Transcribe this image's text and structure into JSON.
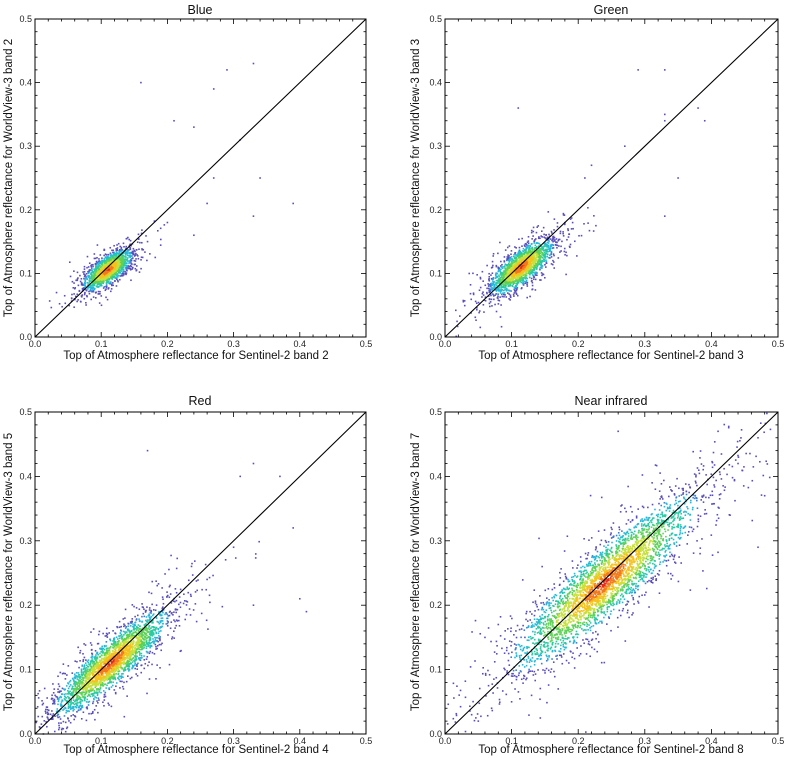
{
  "chart_data": [
    {
      "type": "scatter",
      "title": "Blue",
      "xlabel": "Top of Atmosphere reflectance for Sentinel-2  band 2",
      "ylabel": "Top of Atmosphere reflectance for WorldView-3 band 2",
      "xlim": [
        0,
        0.5
      ],
      "ylim": [
        0,
        0.5
      ],
      "ticks": [
        "0.0",
        "0.1",
        "0.2",
        "0.3",
        "0.4",
        "0.5"
      ],
      "one_to_one_line": true,
      "density_coloring": true,
      "cluster": {
        "center": [
          0.11,
          0.105
        ],
        "sx": 0.017,
        "sy": 0.015,
        "rho": 0.7,
        "count": 1600
      },
      "outliers": [
        [
          0.16,
          0.4
        ],
        [
          0.29,
          0.42
        ],
        [
          0.33,
          0.43
        ],
        [
          0.27,
          0.39
        ],
        [
          0.21,
          0.34
        ],
        [
          0.24,
          0.33
        ],
        [
          0.31,
          0.31
        ],
        [
          0.34,
          0.25
        ],
        [
          0.33,
          0.19
        ],
        [
          0.39,
          0.21
        ],
        [
          0.2,
          0.18
        ],
        [
          0.24,
          0.16
        ],
        [
          0.17,
          0.15
        ],
        [
          0.15,
          0.12
        ],
        [
          0.27,
          0.25
        ],
        [
          0.26,
          0.21
        ]
      ]
    },
    {
      "type": "scatter",
      "title": "Green",
      "xlabel": "Top of Atmosphere reflectance for Sentinel-2  band 3",
      "ylabel": "Top of Atmosphere reflectance for WorldView-3 band 3",
      "xlim": [
        0,
        0.5
      ],
      "ylim": [
        0,
        0.5
      ],
      "ticks": [
        "0.0",
        "0.1",
        "0.2",
        "0.3",
        "0.4",
        "0.5"
      ],
      "one_to_one_line": true,
      "density_coloring": true,
      "cluster": {
        "center": [
          0.115,
          0.11
        ],
        "sx": 0.022,
        "sy": 0.02,
        "rho": 0.75,
        "count": 1900
      },
      "outliers": [
        [
          0.29,
          0.42
        ],
        [
          0.33,
          0.42
        ],
        [
          0.38,
          0.36
        ],
        [
          0.33,
          0.34
        ],
        [
          0.39,
          0.34
        ],
        [
          0.11,
          0.36
        ],
        [
          0.22,
          0.27
        ],
        [
          0.21,
          0.25
        ],
        [
          0.35,
          0.25
        ],
        [
          0.33,
          0.19
        ],
        [
          0.27,
          0.3
        ],
        [
          0.33,
          0.35
        ],
        [
          0.19,
          0.17
        ]
      ]
    },
    {
      "type": "scatter",
      "title": "Red",
      "xlabel": "Top of Atmosphere reflectance for Sentinel-2  band 4",
      "ylabel": "Top of Atmosphere reflectance for WorldView-3 band 5",
      "xlim": [
        0,
        0.5
      ],
      "ylim": [
        0,
        0.5
      ],
      "ticks": [
        "0.0",
        "0.1",
        "0.2",
        "0.3",
        "0.4",
        "0.5"
      ],
      "one_to_one_line": true,
      "density_coloring": true,
      "cluster": {
        "center": [
          0.115,
          0.11
        ],
        "sx": 0.04,
        "sy": 0.038,
        "rho": 0.88,
        "count": 2600
      },
      "outliers": [
        [
          0.17,
          0.44
        ],
        [
          0.31,
          0.4
        ],
        [
          0.33,
          0.42
        ],
        [
          0.37,
          0.4
        ],
        [
          0.3,
          0.29
        ],
        [
          0.4,
          0.21
        ],
        [
          0.41,
          0.19
        ],
        [
          0.26,
          0.24
        ],
        [
          0.33,
          0.2
        ],
        [
          0.39,
          0.32
        ]
      ]
    },
    {
      "type": "scatter",
      "title": "Near infrared",
      "xlabel": "Top of Atmosphere reflectance for Sentinel-2  band 8",
      "ylabel": "Top of Atmosphere reflectance for WorldView-3 band 7",
      "xlim": [
        0,
        0.5
      ],
      "ylim": [
        0,
        0.5
      ],
      "ticks": [
        "0.0",
        "0.1",
        "0.2",
        "0.3",
        "0.4",
        "0.5"
      ],
      "one_to_one_line": true,
      "density_coloring": true,
      "cluster": {
        "center": [
          0.24,
          0.235
        ],
        "sx": 0.065,
        "sy": 0.063,
        "rho": 0.9,
        "count": 3400
      },
      "outliers": [
        [
          0.26,
          0.47
        ],
        [
          0.41,
          0.47
        ],
        [
          0.44,
          0.42
        ],
        [
          0.48,
          0.37
        ],
        [
          0.47,
          0.29
        ],
        [
          0.08,
          0.17
        ],
        [
          0.06,
          0.15
        ],
        [
          0.12,
          0.15
        ],
        [
          0.04,
          0.03
        ],
        [
          0.05,
          0.02
        ],
        [
          0.07,
          0.04
        ],
        [
          0.1,
          0.05
        ],
        [
          0.13,
          0.06
        ],
        [
          0.1,
          0.09
        ],
        [
          0.09,
          0.1
        ],
        [
          0.17,
          0.07
        ],
        [
          0.47,
          0.46
        ]
      ]
    }
  ],
  "colors": {
    "sparse": "#5a4fb8",
    "ramp": [
      "#5a4fb8",
      "#3c7fd6",
      "#26b8d9",
      "#2bc9a2",
      "#5fd158",
      "#c8e03c",
      "#f5c21e",
      "#f27a1e",
      "#e52a1c"
    ],
    "line": "#000000",
    "frame": "#000000"
  }
}
